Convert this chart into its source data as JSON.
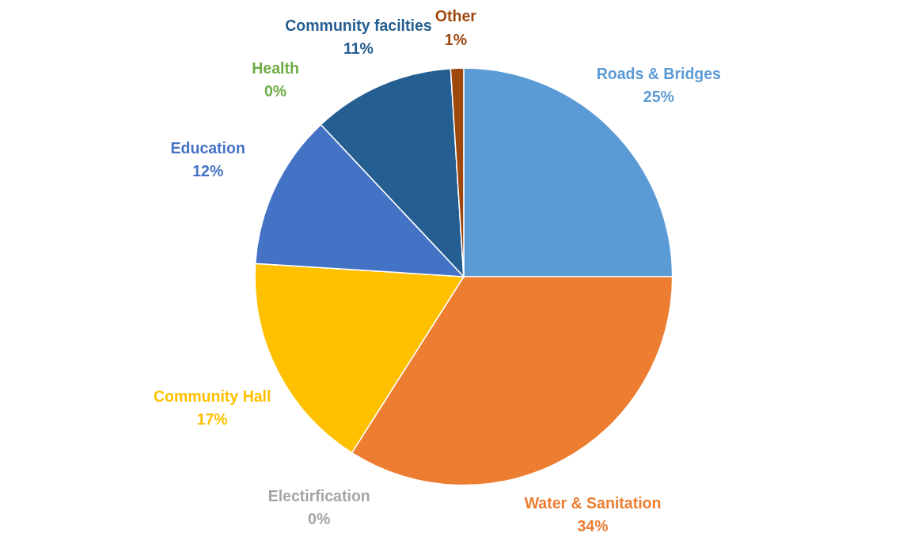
{
  "chart_data": {
    "type": "pie",
    "categories": [
      "Roads & Bridges",
      "Water & Sanitation",
      "Electirfication",
      "Community Hall",
      "Education",
      "Health",
      "Community facilties",
      "Other"
    ],
    "values": [
      25,
      34,
      0,
      17,
      12,
      0,
      11,
      1
    ],
    "value_labels": [
      "25%",
      "34%",
      "0%",
      "17%",
      "12%",
      "0%",
      "11%",
      "1%"
    ],
    "colors": [
      "#5b9bd5",
      "#ed7d31",
      "#a5a5a5",
      "#ffc000",
      "#4472c4",
      "#70ad47",
      "#255e91",
      "#9e480e"
    ]
  }
}
